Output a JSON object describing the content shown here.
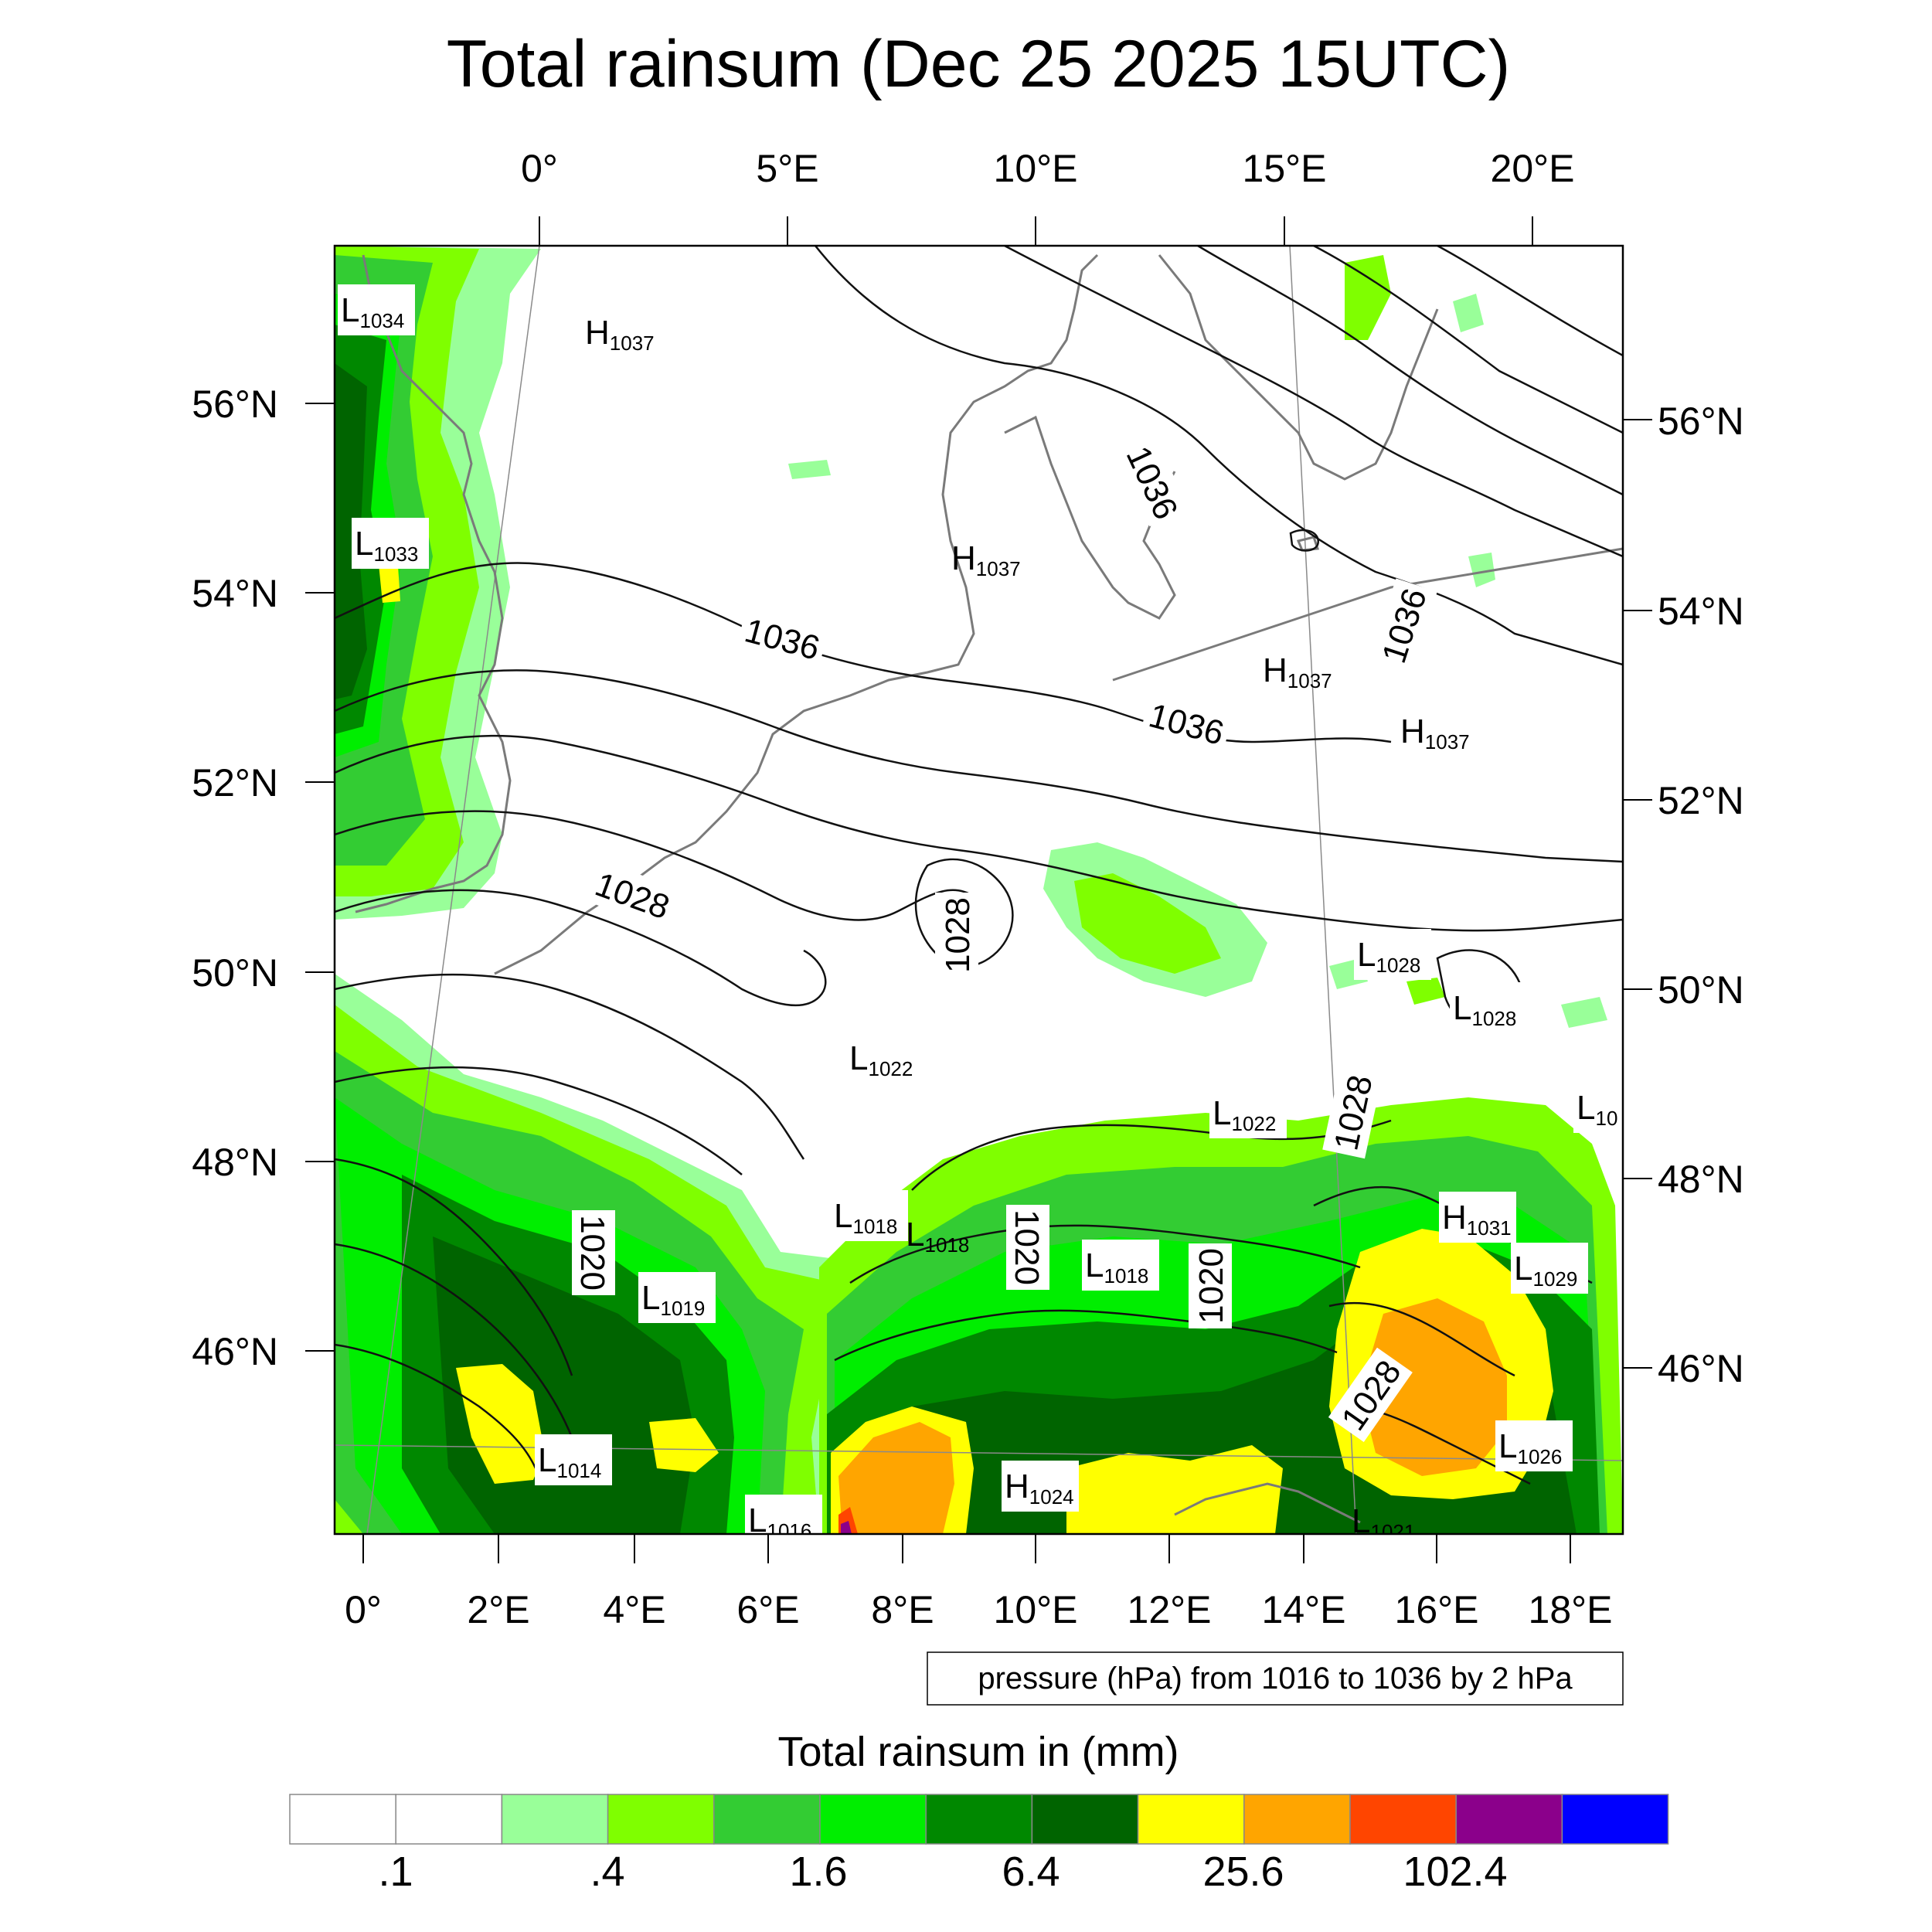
{
  "title": "Total rainsum (Dec 25 2025 15UTC)",
  "top_lon_labels": [
    "0°",
    "5°E",
    "10°E",
    "15°E",
    "20°E"
  ],
  "bottom_lon_labels": [
    "0°",
    "2°E",
    "4°E",
    "6°E",
    "8°E",
    "10°E",
    "12°E",
    "14°E",
    "16°E",
    "18°E"
  ],
  "left_lat_labels": [
    "56°N",
    "54°N",
    "52°N",
    "50°N",
    "48°N",
    "46°N"
  ],
  "right_lat_labels": [
    "56°N",
    "54°N",
    "52°N",
    "50°N",
    "48°N",
    "46°N"
  ],
  "contour_labels": [
    "1036",
    "1036",
    "1036",
    "1036",
    "1028",
    "1028",
    "1028",
    "1028",
    "1020",
    "1020",
    "1020"
  ],
  "pressure_centers": [
    {
      "type": "L",
      "value": "1034"
    },
    {
      "type": "H",
      "value": "1037"
    },
    {
      "type": "L",
      "value": "1033"
    },
    {
      "type": "H",
      "value": "1037"
    },
    {
      "type": "H",
      "value": "1037"
    },
    {
      "type": "H",
      "value": "1037"
    },
    {
      "type": "L",
      "value": "1028"
    },
    {
      "type": "L",
      "value": "1028"
    },
    {
      "type": "L",
      "value": "1022"
    },
    {
      "type": "L",
      "value": "1022"
    },
    {
      "type": "L",
      "value": "10"
    },
    {
      "type": "L",
      "value": "1018"
    },
    {
      "type": "L",
      "value": "1018"
    },
    {
      "type": "L",
      "value": "1018"
    },
    {
      "type": "H",
      "value": "1031"
    },
    {
      "type": "L",
      "value": "1029"
    },
    {
      "type": "L",
      "value": "1019"
    },
    {
      "type": "L",
      "value": "1014"
    },
    {
      "type": "L",
      "value": "1026"
    },
    {
      "type": "H",
      "value": "1024"
    },
    {
      "type": "L",
      "value": "1016"
    },
    {
      "type": "L",
      "value": "1021"
    }
  ],
  "contour_info": "pressure (hPa) from 1016 to 1036 by 2 hPa",
  "colorbar": {
    "title": "Total rainsum in (mm)",
    "colors": [
      "#ffffff",
      "#ffffff",
      "#99ff99",
      "#7fff00",
      "#33cc33",
      "#00ee00",
      "#008800",
      "#006400",
      "#ffff00",
      "#ffa500",
      "#ff4500",
      "#8b008b",
      "#0000ff"
    ],
    "tick_labels": [
      ".1",
      ".4",
      "1.6",
      "6.4",
      "25.6",
      "102.4"
    ]
  }
}
